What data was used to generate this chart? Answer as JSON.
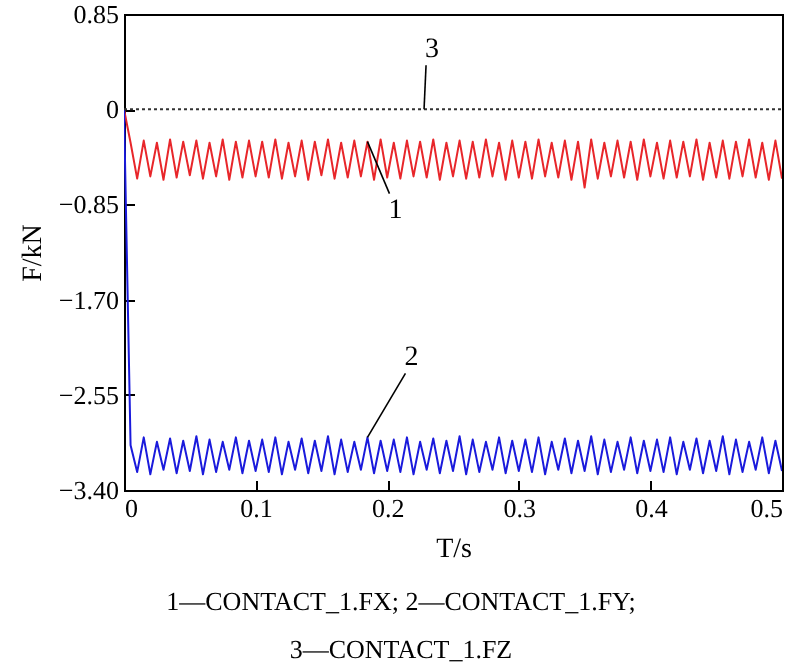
{
  "chart_data": {
    "type": "line",
    "xlabel": "T/s",
    "ylabel": "F/kN",
    "xlim": [
      0,
      0.5
    ],
    "xticks": [
      0,
      0.1,
      0.2,
      0.3,
      0.4,
      0.5
    ],
    "ylim": [
      -3.4,
      0.85
    ],
    "yticks": [
      0.85,
      0,
      {
        "value": -0.85,
        "label": "−0.85"
      },
      {
        "value": -1.7,
        "label": "−1.70"
      },
      {
        "value": -2.55,
        "label": "−2.55"
      },
      {
        "value": -3.4,
        "label": "−3.40"
      }
    ],
    "grid": false,
    "marker": "none",
    "x": [
      0,
      0.005,
      0.01,
      0.015,
      0.02,
      0.025,
      0.03,
      0.035,
      0.04,
      0.045,
      0.05,
      0.055,
      0.06,
      0.065,
      0.07,
      0.075,
      0.08,
      0.085,
      0.09,
      0.095,
      0.1,
      0.105,
      0.11,
      0.115,
      0.12,
      0.125,
      0.13,
      0.135,
      0.14,
      0.145,
      0.15,
      0.155,
      0.16,
      0.165,
      0.17,
      0.175,
      0.18,
      0.185,
      0.19,
      0.195,
      0.2,
      0.205,
      0.21,
      0.215,
      0.22,
      0.225,
      0.23,
      0.235,
      0.24,
      0.245,
      0.25,
      0.255,
      0.26,
      0.265,
      0.27,
      0.275,
      0.28,
      0.285,
      0.29,
      0.295,
      0.3,
      0.305,
      0.31,
      0.315,
      0.32,
      0.325,
      0.33,
      0.335,
      0.34,
      0.345,
      0.35,
      0.355,
      0.36,
      0.365,
      0.37,
      0.375,
      0.38,
      0.385,
      0.39,
      0.395,
      0.4,
      0.405,
      0.41,
      0.415,
      0.42,
      0.425,
      0.43,
      0.435,
      0.44,
      0.445,
      0.45,
      0.455,
      0.46,
      0.465,
      0.47,
      0.475,
      0.48,
      0.485,
      0.49,
      0.495,
      0.5
    ],
    "series": [
      {
        "name": "1",
        "color": "#e8262a",
        "line_style": "solid",
        "values": [
          0,
          -0.3,
          -0.62,
          -0.28,
          -0.6,
          -0.3,
          -0.63,
          -0.27,
          -0.61,
          -0.29,
          -0.59,
          -0.28,
          -0.62,
          -0.3,
          -0.6,
          -0.27,
          -0.63,
          -0.29,
          -0.61,
          -0.28,
          -0.6,
          -0.29,
          -0.61,
          -0.27,
          -0.62,
          -0.3,
          -0.6,
          -0.28,
          -0.63,
          -0.29,
          -0.59,
          -0.27,
          -0.62,
          -0.3,
          -0.61,
          -0.28,
          -0.6,
          -0.29,
          -0.63,
          -0.27,
          -0.61,
          -0.3,
          -0.62,
          -0.28,
          -0.6,
          -0.29,
          -0.61,
          -0.27,
          -0.63,
          -0.3,
          -0.6,
          -0.28,
          -0.62,
          -0.29,
          -0.61,
          -0.27,
          -0.6,
          -0.3,
          -0.63,
          -0.28,
          -0.61,
          -0.29,
          -0.62,
          -0.27,
          -0.6,
          -0.3,
          -0.61,
          -0.28,
          -0.63,
          -0.29,
          -0.7,
          -0.27,
          -0.62,
          -0.3,
          -0.6,
          -0.28,
          -0.61,
          -0.29,
          -0.63,
          -0.27,
          -0.6,
          -0.3,
          -0.62,
          -0.28,
          -0.61,
          -0.29,
          -0.6,
          -0.27,
          -0.63,
          -0.3,
          -0.61,
          -0.28,
          -0.62,
          -0.29,
          -0.6,
          -0.27,
          -0.61,
          -0.3,
          -0.63,
          -0.28,
          -0.62
        ]
      },
      {
        "name": "2",
        "color": "#1a1adc",
        "line_style": "solid",
        "values": [
          0,
          -3.0,
          -3.24,
          -2.93,
          -3.26,
          -2.97,
          -3.22,
          -2.94,
          -3.25,
          -2.96,
          -3.23,
          -2.92,
          -3.26,
          -2.95,
          -3.24,
          -2.97,
          -3.22,
          -2.93,
          -3.25,
          -2.96,
          -3.23,
          -2.95,
          -3.24,
          -2.93,
          -3.26,
          -2.97,
          -3.22,
          -2.94,
          -3.25,
          -2.96,
          -3.23,
          -2.92,
          -3.26,
          -2.95,
          -3.24,
          -2.97,
          -3.22,
          -2.93,
          -3.25,
          -2.96,
          -3.23,
          -2.95,
          -3.24,
          -2.93,
          -3.26,
          -2.97,
          -3.22,
          -2.94,
          -3.25,
          -2.96,
          -3.23,
          -2.92,
          -3.26,
          -2.95,
          -3.24,
          -2.97,
          -3.22,
          -2.93,
          -3.25,
          -2.96,
          -3.23,
          -2.95,
          -3.24,
          -2.93,
          -3.26,
          -2.97,
          -3.22,
          -2.94,
          -3.25,
          -2.96,
          -3.23,
          -2.92,
          -3.26,
          -2.95,
          -3.24,
          -2.97,
          -3.22,
          -2.93,
          -3.25,
          -2.96,
          -3.23,
          -2.95,
          -3.24,
          -2.93,
          -3.26,
          -2.97,
          -3.22,
          -2.94,
          -3.25,
          -2.96,
          -3.23,
          -2.92,
          -3.26,
          -2.95,
          -3.24,
          -2.97,
          -3.22,
          -2.93,
          -3.25,
          -2.96,
          -3.23
        ]
      },
      {
        "name": "3",
        "color": "#333333",
        "line_style": "dotted",
        "x": [
          0,
          0.5
        ],
        "values": [
          0,
          0
        ]
      }
    ],
    "annotations": [
      "1—CONTACT_1.FX; 2—CONTACT_1.FY;",
      "3—CONTACT_1.FZ"
    ]
  }
}
